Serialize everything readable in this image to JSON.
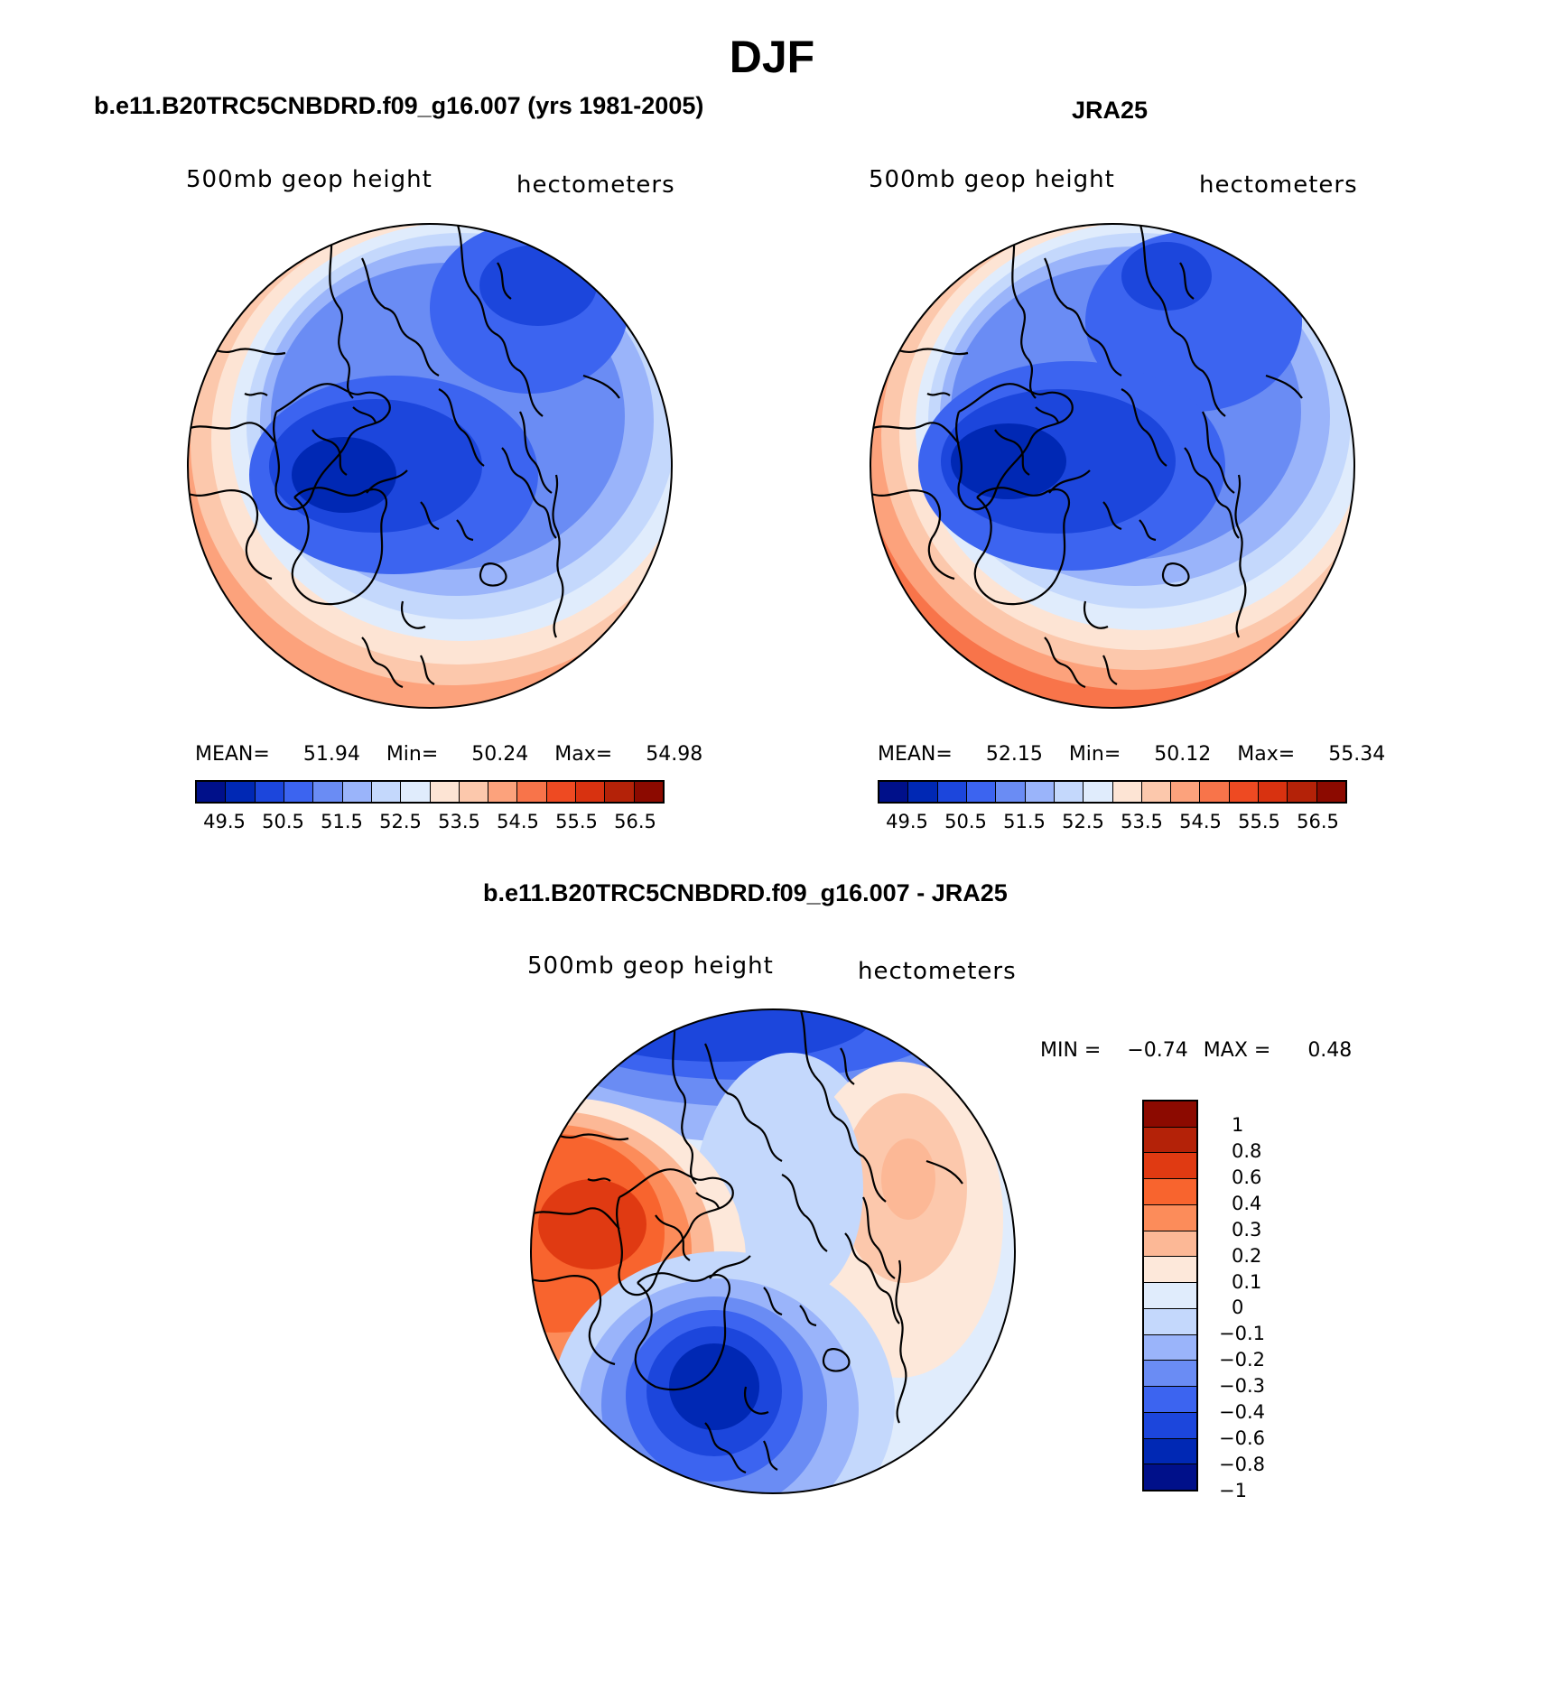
{
  "main_title": "DJF",
  "panels": [
    {
      "title": "b.e11.B20TRC5CNBDRD.f09_g16.007 (yrs 1981-2005)",
      "variable": "500mb geop height",
      "units": "hectometers",
      "mean_label": "MEAN=",
      "mean": "51.94",
      "min_label": "Min=",
      "min": "50.24",
      "max_label": "Max=",
      "max": "54.98"
    },
    {
      "title": "JRA25",
      "variable": "500mb geop height",
      "units": "hectometers",
      "mean_label": "MEAN=",
      "mean": "52.15",
      "min_label": "Min=",
      "min": "50.12",
      "max_label": "Max=",
      "max": "55.34"
    }
  ],
  "difference_panel": {
    "title": "b.e11.B20TRC5CNBDRD.f09_g16.007 - JRA25",
    "variable": "500mb geop height",
    "units": "hectometers",
    "min_label": "MIN =",
    "min": "−0.74",
    "max_label": "MAX =",
    "max": "0.48"
  },
  "colorbar_mean": {
    "colors": [
      "#00108a",
      "#0028b4",
      "#1c46dc",
      "#3c64f0",
      "#6a8cf4",
      "#9ab4fa",
      "#c4d8fc",
      "#e0ecfc",
      "#fde4d4",
      "#fcc8ac",
      "#fca27c",
      "#f8744a",
      "#ee4a22",
      "#d83210",
      "#b42208",
      "#8c0a00"
    ],
    "labels": [
      "49.5",
      "50.5",
      "51.5",
      "52.5",
      "53.5",
      "54.5",
      "55.5",
      "56.5"
    ]
  },
  "colorbar_diff": {
    "colors": [
      "#8c0a00",
      "#b42208",
      "#e03a12",
      "#f8642e",
      "#fc8c5a",
      "#fcb896",
      "#fde8da",
      "#e0ecfc",
      "#c4d8fc",
      "#9ab4fa",
      "#6a8cf4",
      "#3c64f0",
      "#1c46dc",
      "#0028b4",
      "#00108a"
    ],
    "labels": [
      "1",
      "0.8",
      "0.6",
      "0.4",
      "0.3",
      "0.2",
      "0.1",
      "0",
      "−0.1",
      "−0.2",
      "−0.3",
      "−0.4",
      "−0.6",
      "−0.8",
      "−1"
    ]
  }
}
